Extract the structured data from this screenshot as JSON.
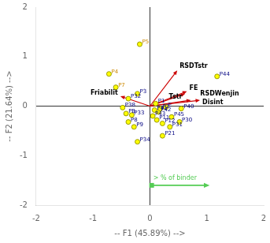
{
  "chart_data": {
    "type": "scatter",
    "xlabel": "-- F1 (45.89%) -->",
    "ylabel": "-- F2 (21.64%) -->",
    "xlim": [
      -2,
      2
    ],
    "ylim": [
      -2,
      2
    ],
    "xticks": [
      -2,
      -1,
      0,
      1,
      2
    ],
    "yticks": [
      -2,
      -1,
      0,
      1,
      2
    ],
    "grid": false,
    "points": {
      "labels": [
        "P5",
        "P4",
        "P7",
        "P3",
        "P32",
        "P38",
        "PB",
        "P33",
        "P8",
        "P9",
        "P34",
        "P44",
        "P40",
        "P45",
        "P30",
        "P31",
        "P21",
        "P41",
        "P42",
        "P43",
        "P1",
        "P2",
        "E",
        "P11",
        "P12"
      ],
      "x": [
        -0.18,
        -0.72,
        -0.6,
        -0.22,
        -0.38,
        -0.48,
        -0.42,
        -0.32,
        -0.38,
        -0.28,
        -0.22,
        1.18,
        0.55,
        0.38,
        0.52,
        0.35,
        0.22,
        0.08,
        0.15,
        0.05,
        0.1,
        0.18,
        0.28,
        0.12,
        0.22
      ],
      "y": [
        1.25,
        0.65,
        0.38,
        0.25,
        0.15,
        -0.03,
        -0.15,
        -0.18,
        -0.32,
        -0.42,
        -0.72,
        0.6,
        -0.05,
        -0.22,
        -0.32,
        -0.42,
        -0.6,
        -0.08,
        -0.12,
        -0.2,
        0.05,
        -0.05,
        -0.02,
        -0.28,
        -0.35
      ],
      "color": "#ffff00",
      "edge_color": "#999900",
      "label_colors": [
        "#cc8800",
        "#cc8800",
        "#cc8800",
        "#000080",
        "#000080",
        "#000080",
        "#000080",
        "#000080",
        "#000080",
        "#000080",
        "#000080",
        "#000080",
        "#000080",
        "#000080",
        "#000080",
        "#000080",
        "#000080",
        "#000080",
        "#000080",
        "#000080",
        "#000080",
        "#000080",
        "#000080",
        "#000080",
        "#000080"
      ]
    },
    "arrows": {
      "labels": [
        "RSDTstr",
        "RSDWenjin",
        "Tstr",
        "Disint",
        "Friabilit",
        "FE"
      ],
      "origin": [
        0,
        0
      ],
      "x": [
        0.48,
        0.62,
        0.72,
        0.88,
        -0.52,
        0.65
      ],
      "y": [
        0.72,
        0.25,
        0.12,
        0.12,
        0.2,
        0.3
      ],
      "color": "#cc0000"
    },
    "annotations": [
      {
        "text": "> % of binder",
        "x": [
          0.03,
          1.05
        ],
        "y": [
          -1.6,
          -1.6
        ],
        "color": "#55cc55"
      }
    ]
  }
}
